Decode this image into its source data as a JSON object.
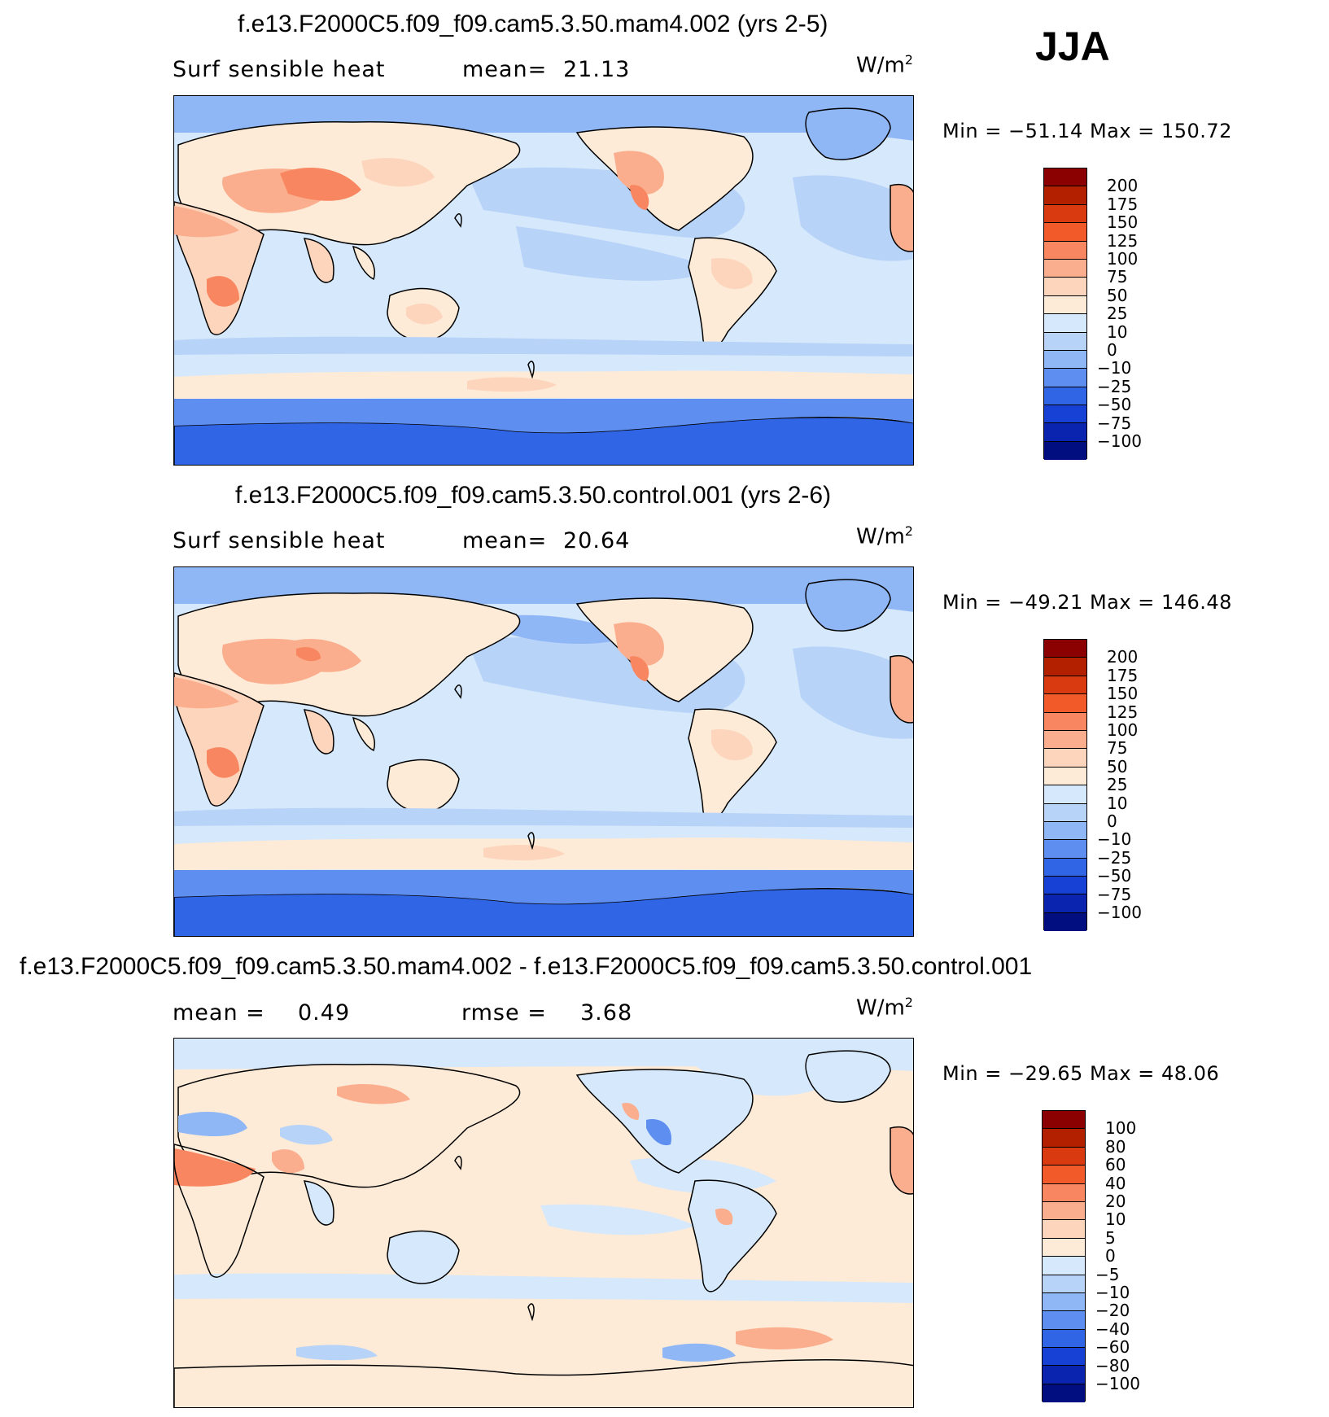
{
  "season": "JJA",
  "units_base": "W/m",
  "units_exp": "2",
  "panels": [
    {
      "title": "f.e13.F2000C5.f09_f09.cam5.3.50.mam4.002 (yrs 2-5)",
      "left_label": "Surf sensible heat",
      "stat_label": "mean=",
      "stat_value": "21.13",
      "min_label": "Min =",
      "min_value": "−51.14",
      "max_label": "Max =",
      "max_value": "150.72"
    },
    {
      "title": "f.e13.F2000C5.f09_f09.cam5.3.50.control.001 (yrs 2-6)",
      "left_label": "Surf sensible heat",
      "stat_label": "mean=",
      "stat_value": "20.64",
      "min_label": "Min =",
      "min_value": "−49.21",
      "max_label": "Max =",
      "max_value": "146.48"
    },
    {
      "title": "f.e13.F2000C5.f09_f09.cam5.3.50.mam4.002 - f.e13.F2000C5.f09_f09.cam5.3.50.control.001",
      "left_label": "mean =",
      "left_value": "0.49",
      "stat_label": "rmse =",
      "stat_value": "3.68",
      "min_label": "Min =",
      "min_value": "−29.65",
      "max_label": "Max =",
      "max_value": "48.06"
    }
  ],
  "chart_data": [
    {
      "type": "heatmap",
      "title": "f.e13.F2000C5.f09_f09.cam5.3.50.mam4.002 (yrs 2-5)",
      "variable": "Surf sensible heat",
      "units": "W/m2",
      "season": "JJA",
      "mean": 21.13,
      "min": -51.14,
      "max": 150.72,
      "colorbar_levels": [
        "200",
        "175",
        "150",
        "125",
        "100",
        "75",
        "50",
        "25",
        "10",
        "0",
        "−10",
        "−25",
        "−50",
        "−75",
        "−100"
      ],
      "colorbar_colors": [
        "#8b0000",
        "#b22000",
        "#d93a0f",
        "#f25a2a",
        "#f88660",
        "#fbae8e",
        "#fdd5bd",
        "#fdebd8",
        "#d6e8fb",
        "#b8d3f8",
        "#8fb6f5",
        "#5e8ff0",
        "#3065e6",
        "#1740d4",
        "#0a24b0",
        "#000e80"
      ]
    },
    {
      "type": "heatmap",
      "title": "f.e13.F2000C5.f09_f09.cam5.3.50.control.001 (yrs 2-6)",
      "variable": "Surf sensible heat",
      "units": "W/m2",
      "season": "JJA",
      "mean": 20.64,
      "min": -49.21,
      "max": 146.48,
      "colorbar_levels": [
        "200",
        "175",
        "150",
        "125",
        "100",
        "75",
        "50",
        "25",
        "10",
        "0",
        "−10",
        "−25",
        "−50",
        "−75",
        "−100"
      ],
      "colorbar_colors": [
        "#8b0000",
        "#b22000",
        "#d93a0f",
        "#f25a2a",
        "#f88660",
        "#fbae8e",
        "#fdd5bd",
        "#fdebd8",
        "#d6e8fb",
        "#b8d3f8",
        "#8fb6f5",
        "#5e8ff0",
        "#3065e6",
        "#1740d4",
        "#0a24b0",
        "#000e80"
      ]
    },
    {
      "type": "heatmap",
      "title": "f.e13.F2000C5.f09_f09.cam5.3.50.mam4.002 - f.e13.F2000C5.f09_f09.cam5.3.50.control.001",
      "units": "W/m2",
      "season": "JJA",
      "mean": 0.49,
      "rmse": 3.68,
      "min": -29.65,
      "max": 48.06,
      "colorbar_levels": [
        "100",
        "80",
        "60",
        "40",
        "20",
        "10",
        "5",
        "0",
        "−5",
        "−10",
        "−20",
        "−40",
        "−60",
        "−80",
        "−100"
      ],
      "colorbar_colors": [
        "#8b0000",
        "#b22000",
        "#d93a0f",
        "#f25a2a",
        "#f88660",
        "#fbae8e",
        "#fdd5bd",
        "#fdebd8",
        "#d6e8fb",
        "#b8d3f8",
        "#8fb6f5",
        "#5e8ff0",
        "#3065e6",
        "#1740d4",
        "#0a24b0",
        "#000e80"
      ]
    }
  ]
}
